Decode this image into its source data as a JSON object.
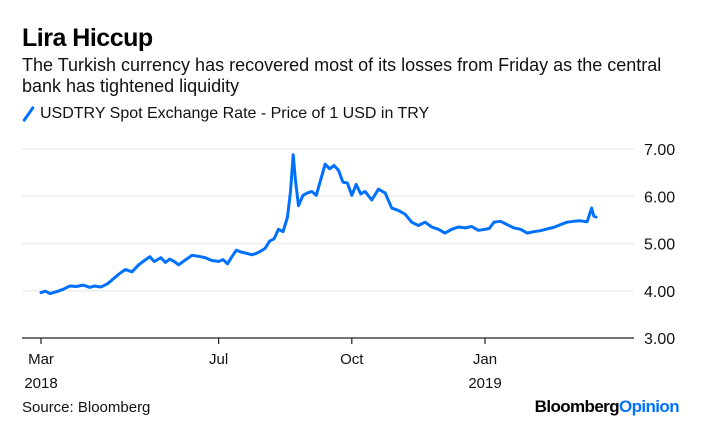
{
  "header": {
    "title": "Lira Hiccup",
    "subtitle": "The Turkish currency has recovered most of its losses from Friday as the central bank has tightened liquidity"
  },
  "legend": {
    "label": "USDTRY Spot Exchange Rate - Price of 1 USD in TRY",
    "color": "#0070ff"
  },
  "footer": {
    "source": "Source: Bloomberg",
    "brand_part1": "Bloomberg",
    "brand_part2": "Opinion"
  },
  "chart_data": {
    "type": "line",
    "title": "Lira Hiccup",
    "subtitle": "The Turkish currency has recovered most of its losses from Friday as the central bank has tightened liquidity",
    "xlabel": "",
    "ylabel": "",
    "ylim": [
      3.0,
      7.0
    ],
    "yticks": [
      "7.00",
      "6.00",
      "5.00",
      "4.00",
      "3.00"
    ],
    "ytick_values": [
      7,
      6,
      5,
      4,
      3
    ],
    "xticks": [
      {
        "label": "Mar",
        "sublabel": "2018",
        "month_index": 0
      },
      {
        "label": "Jul",
        "sublabel": "",
        "month_index": 4
      },
      {
        "label": "Oct",
        "sublabel": "",
        "month_index": 7
      },
      {
        "label": "Jan",
        "sublabel": "2019",
        "month_index": 10
      }
    ],
    "xlim_months": [
      -0.1,
      12.9
    ],
    "grid": true,
    "legend_position": "top-left",
    "series": [
      {
        "name": "USDTRY Spot Exchange Rate - Price of 1 USD in TRY",
        "color": "#0070ff",
        "x_months": [
          0.0,
          0.1,
          0.2,
          0.35,
          0.5,
          0.65,
          0.8,
          0.95,
          1.1,
          1.2,
          1.35,
          1.5,
          1.65,
          1.75,
          1.9,
          2.05,
          2.2,
          2.3,
          2.45,
          2.55,
          2.7,
          2.8,
          2.9,
          3.0,
          3.1,
          3.25,
          3.4,
          3.55,
          3.7,
          3.85,
          4.0,
          4.1,
          4.2,
          4.3,
          4.4,
          4.5,
          4.6,
          4.75,
          4.85,
          4.95,
          5.05,
          5.15,
          5.25,
          5.35,
          5.45,
          5.55,
          5.62,
          5.68,
          5.73,
          5.8,
          5.9,
          6.0,
          6.1,
          6.2,
          6.3,
          6.4,
          6.5,
          6.6,
          6.7,
          6.8,
          6.9,
          7.0,
          7.1,
          7.2,
          7.3,
          7.45,
          7.6,
          7.75,
          7.9,
          8.05,
          8.2,
          8.35,
          8.5,
          8.65,
          8.8,
          8.95,
          9.1,
          9.25,
          9.4,
          9.55,
          9.7,
          9.85,
          10.0,
          10.1,
          10.2,
          10.35,
          10.5,
          10.65,
          10.8,
          10.95,
          11.1,
          11.25,
          11.4,
          11.55,
          11.7,
          11.85,
          12.0,
          12.15,
          12.3,
          12.4,
          12.45,
          12.5
        ],
        "values": [
          3.96,
          3.99,
          3.94,
          3.98,
          4.03,
          4.1,
          4.09,
          4.12,
          4.07,
          4.1,
          4.08,
          4.15,
          4.27,
          4.35,
          4.45,
          4.4,
          4.55,
          4.62,
          4.72,
          4.62,
          4.7,
          4.6,
          4.67,
          4.62,
          4.55,
          4.65,
          4.75,
          4.73,
          4.7,
          4.64,
          4.62,
          4.66,
          4.57,
          4.72,
          4.86,
          4.82,
          4.8,
          4.76,
          4.79,
          4.84,
          4.9,
          5.05,
          5.1,
          5.3,
          5.25,
          5.55,
          6.1,
          6.88,
          6.35,
          5.8,
          6.02,
          6.07,
          6.1,
          6.02,
          6.35,
          6.68,
          6.58,
          6.65,
          6.55,
          6.3,
          6.28,
          6.02,
          6.25,
          6.05,
          6.1,
          5.92,
          6.15,
          6.07,
          5.75,
          5.7,
          5.62,
          5.45,
          5.38,
          5.45,
          5.35,
          5.3,
          5.22,
          5.3,
          5.35,
          5.33,
          5.36,
          5.28,
          5.3,
          5.32,
          5.45,
          5.47,
          5.4,
          5.33,
          5.3,
          5.22,
          5.25,
          5.27,
          5.31,
          5.34,
          5.4,
          5.45,
          5.47,
          5.48,
          5.46,
          5.75,
          5.58,
          5.56
        ]
      }
    ]
  }
}
